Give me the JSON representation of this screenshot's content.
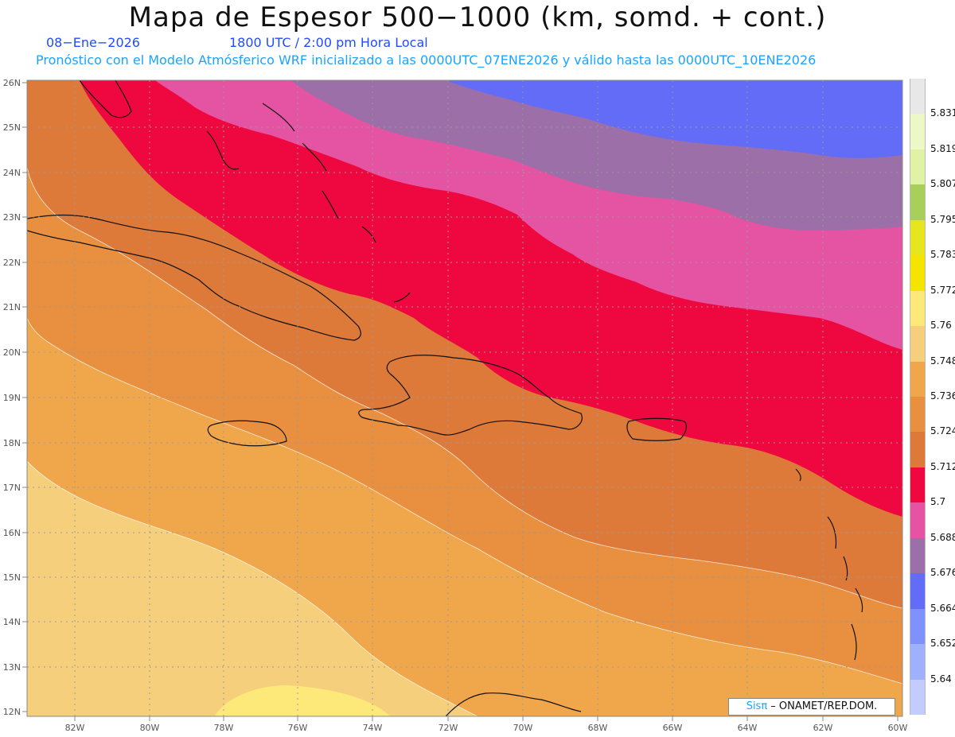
{
  "title": "Mapa de Espesor 500−1000 (km, somd. + cont.)",
  "date": "08−Ene−2026",
  "time": "1800 UTC / 2:00 pm Hora Local",
  "description": "Pronóstico con el Modelo Atmósferico WRF inicializado a las 0000UTC_07ENE2026 y válido hasta las  0000UTC_10ENE2026",
  "credit": {
    "brand": "Sisπ",
    "text": " – ONAMET/REP.DOM."
  },
  "axes": {
    "lon_labels": [
      "82W",
      "80W",
      "78W",
      "76W",
      "74W",
      "72W",
      "70W",
      "68W",
      "66W",
      "64W",
      "62W",
      "60W"
    ],
    "lat_labels": [
      "26N",
      "25N",
      "24N",
      "23N",
      "22N",
      "21N",
      "20N",
      "19N",
      "18N",
      "17N",
      "16N",
      "15N",
      "14N",
      "13N",
      "12N"
    ]
  },
  "legend": {
    "levels": [
      {
        "label": "5.831",
        "color": "#e8e8e8"
      },
      {
        "label": "5.819",
        "color": "#eef7c6"
      },
      {
        "label": "5.807",
        "color": "#dff2a6"
      },
      {
        "label": "5.795",
        "color": "#a9cf5b"
      },
      {
        "label": "5.783",
        "color": "#e6e61e"
      },
      {
        "label": "5.772",
        "color": "#f4e400"
      },
      {
        "label": "5.76",
        "color": "#fde97a"
      },
      {
        "label": "5.748",
        "color": "#f5cf7c"
      },
      {
        "label": "5.736",
        "color": "#f0a64a"
      },
      {
        "label": "5.724",
        "color": "#e8903f"
      },
      {
        "label": "5.712",
        "color": "#dd7a3a"
      },
      {
        "label": "5.7",
        "color": "#ef0840"
      },
      {
        "label": "5.688",
        "color": "#e553a3"
      },
      {
        "label": "5.676",
        "color": "#9c6fa8"
      },
      {
        "label": "5.664",
        "color": "#636cf6"
      },
      {
        "label": "5.652",
        "color": "#7f92fb"
      },
      {
        "label": "5.64",
        "color": "#9fb1fd"
      },
      {
        "label": "",
        "color": "#c3ccfe"
      }
    ]
  }
}
